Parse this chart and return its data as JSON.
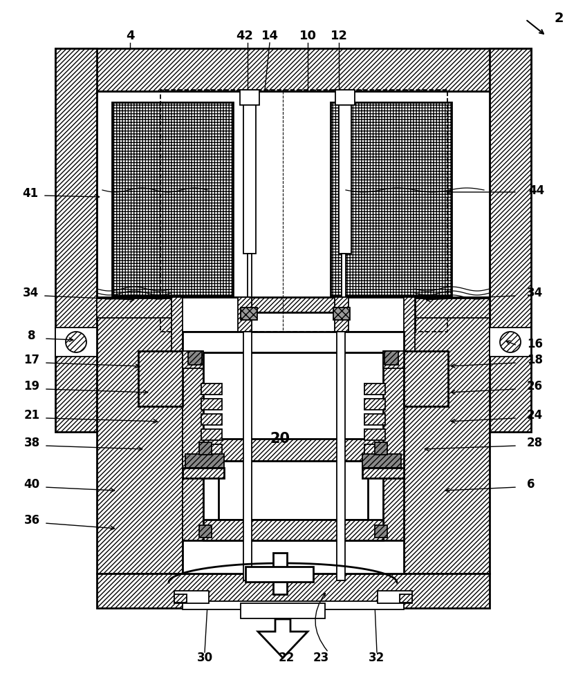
{
  "bg_color": "#ffffff",
  "line_color": "#000000",
  "figsize": [
    8.46,
    10.0
  ],
  "dpi": 100
}
